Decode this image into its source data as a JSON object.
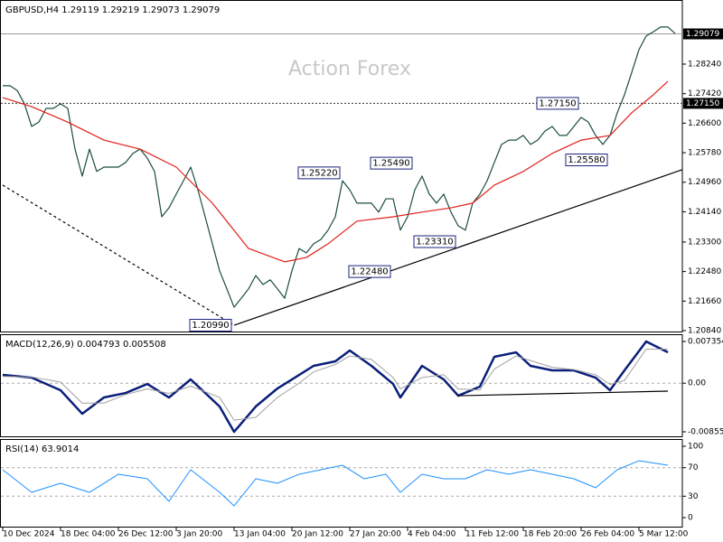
{
  "chart_data": [
    {
      "type": "line",
      "title": "GBPUSD,H4  1.29119 1.29219 1.29073 1.29079",
      "watermark": "Action Forex",
      "categories": [
        "10 Dec 2024",
        null,
        null,
        null,
        null,
        null,
        null,
        null,
        "18 Dec 04:00",
        null,
        null,
        null,
        null,
        null,
        null,
        null,
        "26 Dec 12:00",
        null,
        null,
        null,
        null,
        null,
        null,
        null,
        "3 Jan 20:00",
        null,
        null,
        null,
        null,
        null,
        null,
        null,
        "13 Jan 04:00",
        null,
        null,
        null,
        null,
        null,
        null,
        null,
        "20 Jan 12:00",
        null,
        null,
        null,
        null,
        null,
        null,
        null,
        "27 Jan 20:00",
        null,
        null,
        null,
        null,
        null,
        null,
        null,
        "4 Feb 04:00",
        null,
        null,
        null,
        null,
        null,
        null,
        null,
        "11 Feb 12:00",
        null,
        null,
        null,
        null,
        null,
        null,
        null,
        "18 Feb 20:00",
        null,
        null,
        null,
        null,
        null,
        null,
        null,
        "26 Feb 04:00",
        null,
        null,
        null,
        null,
        null,
        null,
        null,
        "5 Mar 12:00",
        null,
        null,
        null,
        null,
        null
      ],
      "ylim": [
        1.2084,
        1.2997
      ],
      "yticks": [
        {
          "value": 1.2084,
          "label": "1.20840"
        },
        {
          "value": 1.2166,
          "label": "1.21660"
        },
        {
          "value": 1.2248,
          "label": "1.22480"
        },
        {
          "value": 1.233,
          "label": "1.23300"
        },
        {
          "value": 1.2414,
          "label": "1.24140"
        },
        {
          "value": 1.2496,
          "label": "1.24960"
        },
        {
          "value": 1.2578,
          "label": "1.25780"
        },
        {
          "value": 1.266,
          "label": "1.26600"
        },
        {
          "value": 1.2742,
          "label": "1.27420"
        },
        {
          "value": 1.2824,
          "label": "1.28240"
        }
      ],
      "price_markers": [
        {
          "value": 1.29079,
          "label": "1.29079",
          "style": "solid"
        },
        {
          "value": 1.2715,
          "label": "1.27150",
          "style": "dotted"
        }
      ],
      "series": [
        {
          "color": "#1b4d3e",
          "values": [
            1.2764,
            1.2764,
            1.2751,
            1.2714,
            1.2651,
            1.2663,
            1.2701,
            1.2701,
            1.2714,
            1.2701,
            1.2588,
            1.2513,
            1.2588,
            1.2526,
            1.2538,
            1.2538,
            1.2538,
            1.2551,
            1.2576,
            1.2588,
            1.2563,
            1.2526,
            1.24,
            1.2425,
            1.2463,
            1.25,
            1.2538,
            1.2475,
            1.24,
            1.2325,
            1.225,
            1.22,
            1.2149,
            1.2174,
            1.22,
            1.2237,
            1.2212,
            1.2225,
            1.22,
            1.2174,
            1.225,
            1.2312,
            1.23,
            1.2325,
            1.2337,
            1.2363,
            1.24,
            1.25,
            1.2475,
            1.2438,
            1.2438,
            1.2438,
            1.2413,
            1.245,
            1.245,
            1.2363,
            1.24,
            1.2475,
            1.2513,
            1.2463,
            1.2438,
            1.2463,
            1.2413,
            1.2375,
            1.2363,
            1.2438,
            1.2463,
            1.25,
            1.2551,
            1.2601,
            1.2613,
            1.2613,
            1.2626,
            1.2601,
            1.2613,
            1.2638,
            1.2651,
            1.2626,
            1.2626,
            1.2651,
            1.2676,
            1.2663,
            1.2626,
            1.2601,
            1.2626,
            1.2689,
            1.2739,
            1.2801,
            1.2864,
            1.2902,
            1.2914,
            1.2927,
            1.2927,
            1.2909
          ]
        },
        {
          "color": "#e0201b",
          "x": [
            0,
            4,
            9,
            14,
            19,
            24,
            29,
            34,
            39,
            42,
            45,
            49,
            54,
            58,
            62,
            65,
            68,
            72,
            76,
            80,
            84,
            87,
            90,
            92
          ],
          "values": [
            1.2731,
            1.2706,
            1.2663,
            1.2613,
            1.2588,
            1.2538,
            1.2438,
            1.2312,
            1.2275,
            1.2287,
            1.2325,
            1.2388,
            1.24,
            1.2413,
            1.2425,
            1.2438,
            1.2488,
            1.2526,
            1.2576,
            1.2613,
            1.2626,
            1.2689,
            1.2739,
            1.2776
          ]
        }
      ],
      "annotations": [
        {
          "label": "1.20990",
          "value": 1.2099,
          "x": 32
        },
        {
          "label": "1.22480",
          "value": 1.2248,
          "x": 54
        },
        {
          "label": "1.23310",
          "value": 1.2331,
          "x": 63
        },
        {
          "label": "1.25220",
          "value": 1.2522,
          "x": 47
        },
        {
          "label": "1.25490",
          "value": 1.2549,
          "x": 57
        },
        {
          "label": "1.27150",
          "value": 1.2715,
          "x": 80
        },
        {
          "label": "1.25580",
          "value": 1.2558,
          "x": 84
        }
      ],
      "trendlines": [
        {
          "style": "solid",
          "x": [
            32,
            94
          ],
          "values": [
            1.2099,
            1.2531
          ]
        },
        {
          "style": "dashed",
          "x": [
            0,
            32
          ],
          "values": [
            1.2488,
            1.2099
          ]
        }
      ]
    },
    {
      "type": "line",
      "title": "MACD(12,26,9) 0.004793 0.005508",
      "ylim": [
        -0.00919,
        0.00831
      ],
      "yticks": [
        0.007354,
        {
          "value": 0,
          "label": "0.00"
        },
        -0.008558
      ],
      "levels": [
        0
      ],
      "series": [
        {
          "color": "#0b1f7a",
          "width": 2.5,
          "x": [
            0,
            4,
            8,
            11,
            14,
            17,
            20,
            23,
            26,
            30,
            32,
            35,
            38,
            41,
            43,
            46,
            48,
            51,
            54,
            55,
            58,
            61,
            63,
            66,
            68,
            71,
            73,
            76,
            79,
            82,
            84,
            86,
            89,
            92
          ],
          "values": [
            0.00146,
            0.00099,
            -0.00124,
            -0.00538,
            -0.00251,
            -0.00172,
            -0.00013,
            -0.00251,
            0.00067,
            -0.0041,
            -0.00856,
            -0.0041,
            -0.00092,
            0.00146,
            0.00306,
            0.00385,
            0.00576,
            0.00306,
            -0.00013,
            -0.00251,
            0.00306,
            0.00067,
            -0.0022,
            -0.0006,
            0.00465,
            0.00544,
            0.00306,
            0.00226,
            0.00226,
            0.00099,
            -0.00124,
            0.00226,
            0.00735,
            0.00544
          ]
        },
        {
          "color": "#a0a0a0",
          "width": 1,
          "x": [
            0,
            4,
            8,
            11,
            14,
            17,
            20,
            23,
            26,
            30,
            32,
            35,
            38,
            41,
            43,
            46,
            48,
            51,
            54,
            55,
            58,
            61,
            63,
            66,
            68,
            71,
            73,
            76,
            79,
            82,
            84,
            86,
            89,
            92
          ],
          "values": [
            0.0012,
            0.0011,
            0.0002,
            -0.0035,
            -0.0035,
            -0.002,
            -0.001,
            -0.0018,
            -0.0005,
            -0.0025,
            -0.0065,
            -0.006,
            -0.0025,
            0,
            0.002,
            0.0033,
            0.0048,
            0.0042,
            0.001,
            -0.001,
            0.001,
            0.0015,
            -0.001,
            -0.0012,
            0.0025,
            0.0048,
            0.004,
            0.0028,
            0.0024,
            0.0015,
            -0.0002,
            0.0005,
            0.006,
            0.006
          ]
        }
      ],
      "trendlines": [
        {
          "style": "solid",
          "x": [
            63,
            92
          ],
          "values": [
            -0.0022,
            -0.0014
          ]
        }
      ]
    },
    {
      "type": "line",
      "title": "RSI(14) 63.9014",
      "ylim": [
        -11.4,
        107.6
      ],
      "yticks": [
        100,
        70,
        30,
        0
      ],
      "levels": [
        70,
        30
      ],
      "series": [
        {
          "color": "#1e90ff",
          "width": 1,
          "x": [
            0,
            4,
            8,
            12,
            16,
            20,
            23,
            26,
            30,
            32,
            35,
            38,
            41,
            44,
            47,
            50,
            53,
            55,
            58,
            61,
            64,
            67,
            70,
            73,
            76,
            79,
            82,
            85,
            88,
            92
          ],
          "values": [
            67.1,
            35.4,
            48.1,
            35.4,
            60.8,
            54.4,
            22.8,
            67.1,
            35.4,
            16.5,
            54.4,
            48.1,
            60.8,
            67.1,
            73.4,
            54.4,
            60.8,
            35.4,
            60.8,
            54.4,
            54.4,
            67.1,
            60.8,
            67.1,
            60.8,
            54.4,
            41.8,
            67.1,
            79.7,
            73.4
          ]
        }
      ]
    }
  ]
}
